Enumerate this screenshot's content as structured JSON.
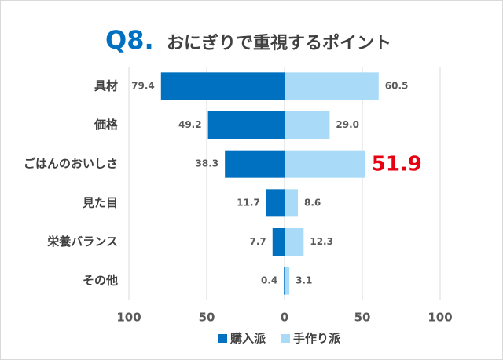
{
  "chart_data": {
    "type": "diverging-bar",
    "title": "Q8.",
    "subtitle": "おにぎりで重視するポイント",
    "categories": [
      "具材",
      "価格",
      "ごはんのおいしさ",
      "見た目",
      "栄養バランス",
      "その他"
    ],
    "series": [
      {
        "name": "購入派",
        "color": "#0070c0",
        "direction": "left",
        "values": [
          79.4,
          49.2,
          38.3,
          11.7,
          7.7,
          0.4
        ]
      },
      {
        "name": "手作り派",
        "color": "#a9dbf8",
        "direction": "right",
        "values": [
          60.5,
          29.0,
          51.9,
          8.6,
          12.3,
          3.1
        ],
        "value_labels": [
          "60.5",
          "29.0",
          "51.9",
          "8.6",
          "12.3",
          "3.1"
        ]
      }
    ],
    "highlight": {
      "series": 1,
      "index": 2,
      "color": "#e60012"
    },
    "xlim": [
      -100,
      100
    ],
    "xticks": [
      {
        "value": -100,
        "label": "100"
      },
      {
        "value": -50,
        "label": "50"
      },
      0,
      50,
      100
    ],
    "grid": true,
    "legend": "bottom"
  }
}
